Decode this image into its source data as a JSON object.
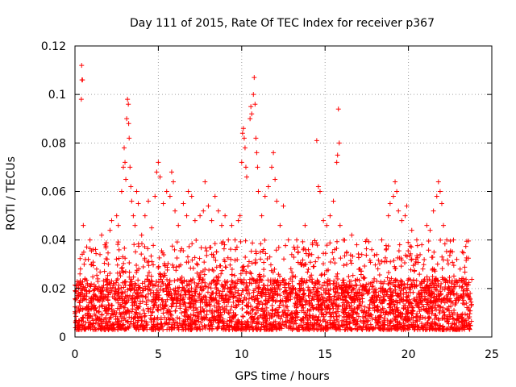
{
  "chart_data": {
    "type": "scatter",
    "title": "Day 111 of 2015, Rate Of TEC Index for receiver p367",
    "xlabel": "GPS time / hours",
    "ylabel": "ROTI / TECUs",
    "xlim": [
      0,
      25
    ],
    "ylim": [
      0,
      0.12
    ],
    "x_ticks": [
      0,
      5,
      10,
      15,
      20,
      25
    ],
    "y_ticks": [
      0,
      0.02,
      0.04,
      0.06,
      0.08,
      0.1,
      0.12
    ],
    "x_tick_labels": [
      "0",
      "5",
      "10",
      "15",
      "20",
      "25"
    ],
    "y_tick_labels": [
      "0",
      "0.02",
      "0.04",
      "0.06",
      "0.08",
      "0.1",
      "0.12"
    ],
    "grid": true,
    "legend": "none",
    "marker": "plus",
    "color": "#ff0000",
    "series": [
      {
        "points": [
          [
            0.1,
            0.012
          ],
          [
            0.2,
            0.018
          ],
          [
            0.3,
            0.026
          ],
          [
            0.35,
            0.02
          ],
          [
            0.4,
            0.112
          ],
          [
            0.42,
            0.106
          ],
          [
            0.45,
            0.106
          ],
          [
            0.38,
            0.098
          ],
          [
            0.5,
            0.046
          ],
          [
            0.55,
            0.03
          ],
          [
            0.6,
            0.024
          ],
          [
            0.8,
            0.032
          ],
          [
            0.9,
            0.04
          ],
          [
            1.0,
            0.03
          ],
          [
            1.1,
            0.036
          ],
          [
            1.3,
            0.028
          ],
          [
            1.5,
            0.034
          ],
          [
            1.6,
            0.042
          ],
          [
            1.8,
            0.038
          ],
          [
            2.0,
            0.03
          ],
          [
            2.1,
            0.044
          ],
          [
            2.2,
            0.048
          ],
          [
            2.5,
            0.05
          ],
          [
            2.6,
            0.046
          ],
          [
            2.8,
            0.06
          ],
          [
            2.9,
            0.07
          ],
          [
            2.95,
            0.078
          ],
          [
            3.0,
            0.072
          ],
          [
            3.05,
            0.065
          ],
          [
            3.1,
            0.09
          ],
          [
            3.15,
            0.098
          ],
          [
            3.2,
            0.096
          ],
          [
            3.22,
            0.088
          ],
          [
            3.25,
            0.082
          ],
          [
            3.3,
            0.07
          ],
          [
            3.35,
            0.062
          ],
          [
            3.4,
            0.056
          ],
          [
            3.5,
            0.05
          ],
          [
            3.6,
            0.046
          ],
          [
            3.7,
            0.06
          ],
          [
            3.8,
            0.055
          ],
          [
            4.0,
            0.042
          ],
          [
            4.2,
            0.05
          ],
          [
            4.4,
            0.056
          ],
          [
            4.6,
            0.045
          ],
          [
            4.8,
            0.058
          ],
          [
            4.9,
            0.068
          ],
          [
            5.0,
            0.072
          ],
          [
            5.1,
            0.066
          ],
          [
            5.3,
            0.055
          ],
          [
            5.5,
            0.06
          ],
          [
            5.7,
            0.058
          ],
          [
            5.8,
            0.068
          ],
          [
            5.9,
            0.064
          ],
          [
            6.0,
            0.052
          ],
          [
            6.2,
            0.046
          ],
          [
            6.5,
            0.055
          ],
          [
            6.7,
            0.05
          ],
          [
            6.8,
            0.06
          ],
          [
            7.0,
            0.058
          ],
          [
            7.2,
            0.048
          ],
          [
            7.5,
            0.05
          ],
          [
            7.7,
            0.052
          ],
          [
            7.8,
            0.064
          ],
          [
            8.0,
            0.054
          ],
          [
            8.2,
            0.048
          ],
          [
            8.4,
            0.058
          ],
          [
            8.6,
            0.052
          ],
          [
            8.8,
            0.046
          ],
          [
            9.0,
            0.05
          ],
          [
            9.2,
            0.04
          ],
          [
            9.4,
            0.046
          ],
          [
            9.6,
            0.04
          ],
          [
            9.8,
            0.048
          ],
          [
            9.9,
            0.05
          ],
          [
            10.0,
            0.072
          ],
          [
            10.05,
            0.084
          ],
          [
            10.1,
            0.086
          ],
          [
            10.15,
            0.082
          ],
          [
            10.2,
            0.078
          ],
          [
            10.25,
            0.07
          ],
          [
            10.3,
            0.066
          ],
          [
            10.5,
            0.09
          ],
          [
            10.55,
            0.095
          ],
          [
            10.6,
            0.092
          ],
          [
            10.7,
            0.1
          ],
          [
            10.75,
            0.107
          ],
          [
            10.8,
            0.096
          ],
          [
            10.85,
            0.082
          ],
          [
            10.9,
            0.076
          ],
          [
            10.95,
            0.07
          ],
          [
            11.0,
            0.06
          ],
          [
            11.2,
            0.05
          ],
          [
            11.4,
            0.058
          ],
          [
            11.6,
            0.062
          ],
          [
            11.8,
            0.07
          ],
          [
            11.9,
            0.076
          ],
          [
            12.0,
            0.065
          ],
          [
            12.1,
            0.056
          ],
          [
            12.3,
            0.046
          ],
          [
            12.5,
            0.054
          ],
          [
            12.8,
            0.04
          ],
          [
            13.0,
            0.034
          ],
          [
            13.3,
            0.04
          ],
          [
            13.6,
            0.03
          ],
          [
            13.8,
            0.046
          ],
          [
            14.0,
            0.036
          ],
          [
            14.2,
            0.034
          ],
          [
            14.5,
            0.081
          ],
          [
            14.6,
            0.062
          ],
          [
            14.7,
            0.06
          ],
          [
            14.9,
            0.048
          ],
          [
            15.1,
            0.046
          ],
          [
            15.3,
            0.05
          ],
          [
            15.5,
            0.056
          ],
          [
            15.7,
            0.072
          ],
          [
            15.75,
            0.075
          ],
          [
            15.8,
            0.094
          ],
          [
            15.85,
            0.08
          ],
          [
            15.9,
            0.046
          ],
          [
            16.1,
            0.04
          ],
          [
            16.3,
            0.035
          ],
          [
            16.6,
            0.042
          ],
          [
            16.9,
            0.038
          ],
          [
            17.2,
            0.034
          ],
          [
            17.5,
            0.04
          ],
          [
            17.8,
            0.036
          ],
          [
            18.1,
            0.034
          ],
          [
            18.4,
            0.04
          ],
          [
            18.8,
            0.05
          ],
          [
            18.9,
            0.055
          ],
          [
            19.1,
            0.058
          ],
          [
            19.2,
            0.064
          ],
          [
            19.3,
            0.06
          ],
          [
            19.4,
            0.052
          ],
          [
            19.6,
            0.048
          ],
          [
            19.8,
            0.05
          ],
          [
            19.9,
            0.054
          ],
          [
            20.2,
            0.044
          ],
          [
            20.5,
            0.04
          ],
          [
            20.8,
            0.038
          ],
          [
            21.1,
            0.046
          ],
          [
            21.3,
            0.044
          ],
          [
            21.5,
            0.052
          ],
          [
            21.7,
            0.058
          ],
          [
            21.8,
            0.064
          ],
          [
            21.9,
            0.06
          ],
          [
            22.0,
            0.055
          ],
          [
            22.1,
            0.046
          ],
          [
            22.3,
            0.04
          ],
          [
            22.5,
            0.035
          ],
          [
            22.7,
            0.04
          ],
          [
            22.9,
            0.032
          ],
          [
            23.1,
            0.028
          ],
          [
            23.3,
            0.024
          ],
          [
            23.5,
            0.02
          ],
          [
            23.7,
            0.018
          ],
          [
            0.5,
            0.008
          ],
          [
            1.2,
            0.012
          ],
          [
            2.4,
            0.01
          ],
          [
            3.6,
            0.014
          ],
          [
            4.7,
            0.012
          ],
          [
            5.6,
            0.01
          ],
          [
            6.6,
            0.014
          ],
          [
            7.6,
            0.016
          ],
          [
            8.5,
            0.012
          ],
          [
            9.5,
            0.01
          ],
          [
            10.4,
            0.014
          ],
          [
            11.5,
            0.012
          ],
          [
            12.6,
            0.01
          ],
          [
            13.7,
            0.012
          ],
          [
            14.8,
            0.01
          ],
          [
            15.6,
            0.014
          ],
          [
            16.7,
            0.01
          ],
          [
            17.6,
            0.012
          ],
          [
            18.6,
            0.01
          ],
          [
            19.7,
            0.012
          ],
          [
            20.6,
            0.014
          ],
          [
            21.6,
            0.012
          ],
          [
            22.6,
            0.01
          ],
          [
            23.6,
            0.012
          ]
        ]
      }
    ],
    "dense_bands": [
      {
        "x_range": [
          0,
          23.8
        ],
        "y_range": [
          0.003,
          0.024
        ],
        "count": 2600,
        "seed": 7
      },
      {
        "x_range": [
          0.3,
          23.6
        ],
        "y_range": [
          0.015,
          0.04
        ],
        "count": 900,
        "seed": 11
      }
    ]
  }
}
